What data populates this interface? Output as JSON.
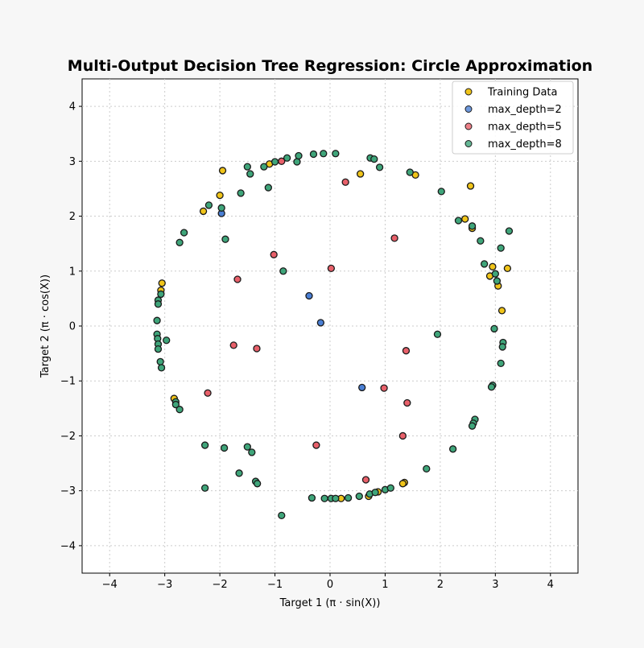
{
  "chart_data": {
    "type": "scatter",
    "title": "Multi-Output Decision Tree Regression: Circle Approximation",
    "xlabel": "Target 1 (π · sin(X))",
    "ylabel": "Target 2 (π · cos(X))",
    "xlim": [
      -4.5,
      4.5
    ],
    "ylim": [
      -4.5,
      4.5
    ],
    "xticks": [
      -4,
      -3,
      -2,
      -1,
      0,
      1,
      2,
      3,
      4
    ],
    "yticks": [
      -4,
      -3,
      -2,
      -1,
      0,
      1,
      2,
      3,
      4
    ],
    "xtick_labels": [
      "−4",
      "−3",
      "−2",
      "−1",
      "0",
      "1",
      "2",
      "3",
      "4"
    ],
    "ytick_labels": [
      "−4",
      "−3",
      "−2",
      "−1",
      "0",
      "1",
      "2",
      "3",
      "4"
    ],
    "grid": true,
    "legend_position": "upper right",
    "series": [
      {
        "name": "Training Data",
        "color": "#f0c419",
        "points": [
          [
            -1.95,
            2.83
          ],
          [
            -2.0,
            2.38
          ],
          [
            -2.3,
            2.09
          ],
          [
            -3.05,
            0.78
          ],
          [
            -3.07,
            0.65
          ],
          [
            -2.83,
            -1.32
          ],
          [
            0.55,
            2.77
          ],
          [
            1.55,
            2.75
          ],
          [
            2.55,
            2.55
          ],
          [
            2.45,
            1.95
          ],
          [
            2.95,
            1.08
          ],
          [
            2.9,
            0.91
          ],
          [
            3.05,
            0.73
          ],
          [
            3.22,
            1.05
          ],
          [
            3.12,
            0.28
          ],
          [
            0.7,
            -3.1
          ],
          [
            0.87,
            -3.02
          ],
          [
            1.35,
            -2.85
          ],
          [
            1.32,
            -2.87
          ],
          [
            -1.1,
            2.95
          ],
          [
            2.58,
            1.78
          ],
          [
            0.2,
            -3.14
          ]
        ]
      },
      {
        "name": "max_depth=2",
        "color": "#4a7fd4",
        "points": [
          [
            -1.97,
            2.05
          ],
          [
            -0.38,
            0.55
          ],
          [
            -0.17,
            0.06
          ],
          [
            0.58,
            -1.12
          ]
        ]
      },
      {
        "name": "max_depth=5",
        "color": "#e8606a",
        "points": [
          [
            -0.88,
            3.0
          ],
          [
            0.28,
            2.62
          ],
          [
            1.17,
            1.6
          ],
          [
            -1.02,
            1.3
          ],
          [
            0.02,
            1.05
          ],
          [
            -1.68,
            0.85
          ],
          [
            -1.75,
            -0.35
          ],
          [
            -1.33,
            -0.41
          ],
          [
            1.38,
            -0.45
          ],
          [
            0.98,
            -1.13
          ],
          [
            1.4,
            -1.4
          ],
          [
            -2.22,
            -1.22
          ],
          [
            -0.25,
            -2.17
          ],
          [
            1.32,
            -2.0
          ],
          [
            0.65,
            -2.8
          ]
        ]
      },
      {
        "name": "max_depth=8",
        "color": "#3fa57a",
        "points": [
          [
            -1.5,
            2.9
          ],
          [
            -1.45,
            2.77
          ],
          [
            -1.2,
            2.9
          ],
          [
            -1.12,
            2.52
          ],
          [
            -1.0,
            2.99
          ],
          [
            -0.78,
            3.06
          ],
          [
            -0.6,
            2.99
          ],
          [
            -0.57,
            3.1
          ],
          [
            -0.3,
            3.13
          ],
          [
            -0.12,
            3.14
          ],
          [
            0.1,
            3.14
          ],
          [
            0.73,
            3.06
          ],
          [
            0.8,
            3.04
          ],
          [
            0.9,
            2.89
          ],
          [
            1.45,
            2.8
          ],
          [
            2.02,
            2.45
          ],
          [
            -2.2,
            2.2
          ],
          [
            -1.97,
            2.15
          ],
          [
            -1.62,
            2.42
          ],
          [
            -2.65,
            1.7
          ],
          [
            -2.73,
            1.52
          ],
          [
            -1.9,
            1.58
          ],
          [
            -0.85,
            1.0
          ],
          [
            2.33,
            1.92
          ],
          [
            2.58,
            1.82
          ],
          [
            2.73,
            1.55
          ],
          [
            2.8,
            1.13
          ],
          [
            3.1,
            1.42
          ],
          [
            3.25,
            1.73
          ],
          [
            3.0,
            0.95
          ],
          [
            3.03,
            0.82
          ],
          [
            -3.07,
            0.58
          ],
          [
            -3.12,
            0.47
          ],
          [
            -3.12,
            0.4
          ],
          [
            -3.14,
            0.1
          ],
          [
            -3.14,
            -0.15
          ],
          [
            -3.13,
            -0.23
          ],
          [
            -3.12,
            -0.33
          ],
          [
            -3.12,
            -0.42
          ],
          [
            -2.97,
            -0.26
          ],
          [
            -3.08,
            -0.65
          ],
          [
            -3.06,
            -0.76
          ],
          [
            2.98,
            -0.05
          ],
          [
            3.14,
            -0.3
          ],
          [
            3.13,
            -0.38
          ],
          [
            3.1,
            -0.68
          ],
          [
            1.95,
            -0.15
          ],
          [
            2.95,
            -1.08
          ],
          [
            2.93,
            -1.11
          ],
          [
            2.63,
            -1.7
          ],
          [
            2.6,
            -1.77
          ],
          [
            2.58,
            -1.82
          ],
          [
            -2.8,
            -1.38
          ],
          [
            -2.8,
            -1.43
          ],
          [
            -2.73,
            -1.52
          ],
          [
            -2.27,
            -2.17
          ],
          [
            -1.92,
            -2.22
          ],
          [
            -1.5,
            -2.2
          ],
          [
            -1.42,
            -2.3
          ],
          [
            -1.65,
            -2.68
          ],
          [
            -1.35,
            -2.83
          ],
          [
            -1.32,
            -2.87
          ],
          [
            -2.27,
            -2.95
          ],
          [
            -0.88,
            -3.45
          ],
          [
            -0.33,
            -3.13
          ],
          [
            -0.1,
            -3.14
          ],
          [
            0.02,
            -3.14
          ],
          [
            0.1,
            -3.14
          ],
          [
            0.33,
            -3.13
          ],
          [
            0.53,
            -3.1
          ],
          [
            0.72,
            -3.06
          ],
          [
            0.82,
            -3.03
          ],
          [
            1.0,
            -2.98
          ],
          [
            1.1,
            -2.95
          ],
          [
            1.75,
            -2.6
          ],
          [
            2.23,
            -2.24
          ]
        ]
      }
    ]
  }
}
